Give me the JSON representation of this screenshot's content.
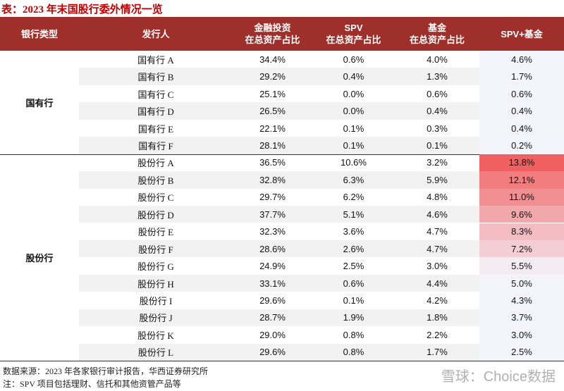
{
  "title": "表：2023 年末国股行委外情况一览",
  "table": {
    "header": [
      [
        "银行类型"
      ],
      [
        "发行人"
      ],
      [
        "金融投资",
        "在总资产占比"
      ],
      [
        "SPV",
        "在总资产占比"
      ],
      [
        "基金",
        "在总资产占比"
      ],
      [
        "SPV+基金"
      ]
    ],
    "groups": [
      {
        "name": "国有行",
        "rows": [
          [
            "国有行 A",
            "34.4%",
            "0.6%",
            "4.0%",
            "4.6%"
          ],
          [
            "国有行 B",
            "29.2%",
            "0.4%",
            "1.3%",
            "1.7%"
          ],
          [
            "国有行 C",
            "25.1%",
            "0.0%",
            "0.6%",
            "0.6%"
          ],
          [
            "国有行 D",
            "26.5%",
            "0.0%",
            "0.4%",
            "0.4%"
          ],
          [
            "国有行 E",
            "22.1%",
            "0.1%",
            "0.3%",
            "0.4%"
          ],
          [
            "国有行 F",
            "28.1%",
            "0.1%",
            "0.1%",
            "0.2%"
          ]
        ]
      },
      {
        "name": "股份行",
        "rows": [
          [
            "股份行 A",
            "36.5%",
            "10.6%",
            "3.2%",
            "13.8%"
          ],
          [
            "股份行 B",
            "32.8%",
            "6.3%",
            "5.9%",
            "12.1%"
          ],
          [
            "股份行 C",
            "29.7%",
            "6.2%",
            "4.8%",
            "11.0%"
          ],
          [
            "股份行 D",
            "37.7%",
            "5.1%",
            "4.6%",
            "9.6%"
          ],
          [
            "股份行 E",
            "32.3%",
            "3.6%",
            "4.7%",
            "8.3%"
          ],
          [
            "股份行 F",
            "28.6%",
            "2.6%",
            "4.7%",
            "7.2%"
          ],
          [
            "股份行 G",
            "24.9%",
            "2.5%",
            "3.0%",
            "5.5%"
          ],
          [
            "股份行 H",
            "33.1%",
            "0.6%",
            "4.4%",
            "5.0%"
          ],
          [
            "股份行 I",
            "29.6%",
            "0.1%",
            "4.2%",
            "4.3%"
          ],
          [
            "股份行 J",
            "28.7%",
            "1.9%",
            "1.8%",
            "3.7%"
          ],
          [
            "股份行 K",
            "29.0%",
            "0.8%",
            "2.2%",
            "3.0%"
          ],
          [
            "股份行 L",
            "29.6%",
            "0.8%",
            "1.7%",
            "2.5%"
          ]
        ]
      }
    ]
  },
  "footer": [
    "数据来源：2023 年各家银行审计报告，华西证券研究所",
    "注：SPV 项目包括理财、信托和其他资管产品等"
  ],
  "watermark": "雪球：Choice数据"
}
